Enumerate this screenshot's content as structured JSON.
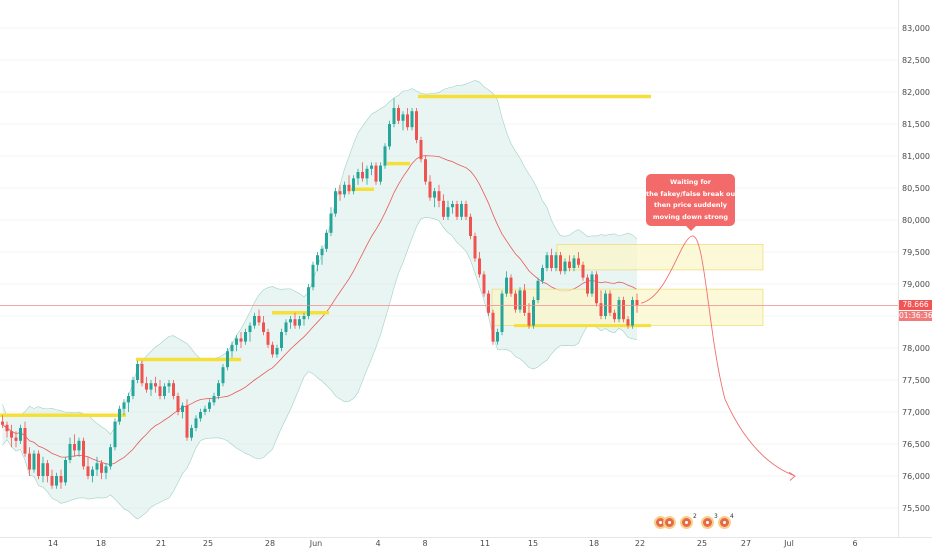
{
  "chart_data": {
    "type": "candlestick",
    "title": "",
    "xlabel": "",
    "ylabel": "",
    "x_ticks": [
      "14",
      "18",
      "21",
      "25",
      "28",
      "Jun",
      "4",
      "8",
      "11",
      "15",
      "18",
      "22",
      "25",
      "27",
      "Jul",
      "6"
    ],
    "y_ticks": [
      "75,500",
      "76,000",
      "76,500",
      "77,000",
      "77,500",
      "78,000",
      "78,500",
      "79,000",
      "79,500",
      "80,000",
      "80,500",
      "81,000",
      "81,500",
      "82,000",
      "82,500",
      "83,000"
    ],
    "ylim": [
      75.2,
      83.2
    ],
    "current_price": "78.666",
    "countdown": "01:36:36",
    "annotation": [
      "Waiting for",
      "the fakey/false break out,",
      "then price suddenly",
      "moving down strong"
    ],
    "series": [
      {
        "values": [
          [
            76.85,
            76.95,
            76.75,
            76.8
          ],
          [
            76.8,
            76.85,
            76.6,
            76.7
          ],
          [
            76.7,
            76.8,
            76.45,
            76.6
          ],
          [
            76.6,
            76.7,
            76.45,
            76.55
          ],
          [
            76.55,
            76.8,
            76.5,
            76.75
          ],
          [
            76.75,
            76.85,
            76.3,
            76.35
          ],
          [
            76.35,
            76.45,
            76.0,
            76.1
          ],
          [
            76.1,
            76.4,
            76.05,
            76.35
          ],
          [
            76.35,
            76.4,
            75.95,
            76.0
          ],
          [
            76.0,
            76.3,
            75.9,
            76.2
          ],
          [
            76.2,
            76.25,
            75.9,
            76.0
          ],
          [
            76.0,
            76.1,
            75.8,
            75.85
          ],
          [
            75.85,
            76.05,
            75.8,
            76.0
          ],
          [
            76.0,
            76.1,
            75.8,
            75.9
          ],
          [
            75.9,
            76.3,
            75.85,
            76.25
          ],
          [
            76.25,
            76.6,
            76.2,
            76.5
          ],
          [
            76.5,
            76.65,
            76.3,
            76.4
          ],
          [
            76.4,
            76.6,
            76.3,
            76.55
          ],
          [
            76.55,
            76.6,
            76.1,
            76.15
          ],
          [
            76.15,
            76.3,
            75.95,
            76.0
          ],
          [
            76.0,
            76.15,
            75.9,
            76.1
          ],
          [
            76.1,
            76.3,
            76.0,
            76.2
          ],
          [
            76.2,
            76.25,
            75.95,
            76.05
          ],
          [
            76.05,
            76.2,
            75.95,
            76.15
          ],
          [
            76.15,
            76.5,
            76.1,
            76.45
          ],
          [
            76.45,
            76.9,
            76.4,
            76.85
          ],
          [
            76.85,
            77.1,
            76.8,
            77.05
          ],
          [
            77.05,
            77.2,
            76.95,
            77.15
          ],
          [
            77.15,
            77.3,
            77.0,
            77.25
          ],
          [
            77.25,
            77.55,
            77.2,
            77.5
          ],
          [
            77.5,
            77.8,
            77.45,
            77.75
          ],
          [
            77.75,
            77.8,
            77.4,
            77.45
          ],
          [
            77.45,
            77.55,
            77.3,
            77.35
          ],
          [
            77.35,
            77.5,
            77.25,
            77.45
          ],
          [
            77.45,
            77.55,
            77.3,
            77.4
          ],
          [
            77.4,
            77.5,
            77.2,
            77.25
          ],
          [
            77.25,
            77.45,
            77.2,
            77.4
          ],
          [
            77.4,
            77.5,
            77.3,
            77.45
          ],
          [
            77.45,
            77.5,
            77.2,
            77.25
          ],
          [
            77.25,
            77.3,
            76.95,
            77.0
          ],
          [
            77.0,
            77.15,
            76.9,
            77.1
          ],
          [
            77.1,
            77.2,
            76.55,
            76.6
          ],
          [
            76.6,
            76.8,
            76.55,
            76.75
          ],
          [
            76.75,
            76.95,
            76.7,
            76.9
          ],
          [
            76.9,
            77.05,
            76.85,
            77.0
          ],
          [
            77.0,
            77.1,
            76.95,
            77.05
          ],
          [
            77.05,
            77.2,
            77.0,
            77.15
          ],
          [
            77.15,
            77.3,
            77.1,
            77.25
          ],
          [
            77.25,
            77.5,
            77.2,
            77.45
          ],
          [
            77.45,
            77.75,
            77.4,
            77.7
          ],
          [
            77.7,
            78.0,
            77.65,
            77.95
          ],
          [
            77.95,
            78.1,
            77.85,
            78.05
          ],
          [
            78.05,
            78.2,
            77.95,
            78.15
          ],
          [
            78.15,
            78.25,
            78.0,
            78.1
          ],
          [
            78.1,
            78.3,
            78.05,
            78.25
          ],
          [
            78.25,
            78.4,
            78.1,
            78.35
          ],
          [
            78.35,
            78.55,
            78.3,
            78.5
          ],
          [
            78.5,
            78.6,
            78.35,
            78.4
          ],
          [
            78.4,
            78.5,
            78.2,
            78.25
          ],
          [
            78.25,
            78.3,
            78.0,
            78.05
          ],
          [
            78.05,
            78.1,
            77.85,
            77.9
          ],
          [
            77.9,
            78.05,
            77.85,
            78.0
          ],
          [
            78.0,
            78.3,
            77.95,
            78.25
          ],
          [
            78.25,
            78.45,
            78.2,
            78.4
          ],
          [
            78.4,
            78.5,
            78.3,
            78.45
          ],
          [
            78.45,
            78.55,
            78.3,
            78.35
          ],
          [
            78.35,
            78.5,
            78.3,
            78.45
          ],
          [
            78.45,
            78.55,
            78.35,
            78.5
          ],
          [
            78.5,
            79.0,
            78.45,
            78.95
          ],
          [
            78.95,
            79.35,
            78.9,
            79.3
          ],
          [
            79.3,
            79.5,
            79.2,
            79.45
          ],
          [
            79.45,
            79.6,
            79.3,
            79.55
          ],
          [
            79.55,
            79.85,
            79.5,
            79.8
          ],
          [
            79.8,
            80.2,
            79.75,
            80.1
          ],
          [
            80.1,
            80.5,
            80.05,
            80.45
          ],
          [
            80.45,
            80.55,
            80.3,
            80.4
          ],
          [
            80.4,
            80.6,
            80.35,
            80.55
          ],
          [
            80.55,
            80.7,
            80.4,
            80.45
          ],
          [
            80.45,
            80.7,
            80.4,
            80.65
          ],
          [
            80.65,
            80.8,
            80.55,
            80.75
          ],
          [
            80.75,
            80.9,
            80.6,
            80.65
          ],
          [
            80.65,
            80.85,
            80.55,
            80.8
          ],
          [
            80.8,
            80.9,
            80.7,
            80.85
          ],
          [
            80.85,
            80.9,
            80.55,
            80.6
          ],
          [
            80.6,
            80.9,
            80.55,
            80.85
          ],
          [
            80.85,
            81.2,
            80.8,
            81.15
          ],
          [
            81.15,
            81.55,
            81.1,
            81.5
          ],
          [
            81.5,
            81.9,
            81.45,
            81.75
          ],
          [
            81.75,
            81.8,
            81.5,
            81.55
          ],
          [
            81.55,
            81.7,
            81.4,
            81.65
          ],
          [
            81.65,
            81.75,
            81.4,
            81.45
          ],
          [
            81.45,
            81.75,
            81.4,
            81.7
          ],
          [
            81.7,
            81.75,
            81.2,
            81.25
          ],
          [
            81.25,
            81.3,
            80.9,
            80.95
          ],
          [
            80.95,
            81.0,
            80.55,
            80.6
          ],
          [
            80.6,
            80.7,
            80.3,
            80.35
          ],
          [
            80.35,
            80.5,
            80.2,
            80.45
          ],
          [
            80.45,
            80.55,
            80.2,
            80.3
          ],
          [
            80.3,
            80.4,
            80.0,
            80.05
          ],
          [
            80.05,
            80.3,
            80.0,
            80.2
          ],
          [
            80.2,
            80.3,
            80.1,
            80.25
          ],
          [
            80.25,
            80.3,
            80.0,
            80.05
          ],
          [
            80.05,
            80.3,
            80.0,
            80.25
          ],
          [
            80.25,
            80.3,
            80.0,
            80.05
          ],
          [
            80.05,
            80.1,
            79.7,
            79.75
          ],
          [
            79.75,
            79.8,
            79.35,
            79.4
          ],
          [
            79.4,
            79.5,
            79.1,
            79.15
          ],
          [
            79.15,
            79.2,
            78.8,
            78.85
          ],
          [
            78.85,
            78.9,
            78.5,
            78.55
          ],
          [
            78.55,
            78.6,
            78.05,
            78.1
          ],
          [
            78.1,
            78.3,
            78.05,
            78.25
          ],
          [
            78.25,
            78.9,
            78.2,
            78.85
          ],
          [
            78.85,
            79.2,
            78.8,
            79.1
          ],
          [
            79.1,
            79.15,
            78.8,
            78.85
          ],
          [
            78.85,
            78.9,
            78.55,
            78.6
          ],
          [
            78.6,
            78.95,
            78.55,
            78.9
          ],
          [
            78.9,
            79.0,
            78.5,
            78.55
          ],
          [
            78.55,
            78.7,
            78.3,
            78.35
          ],
          [
            78.35,
            78.8,
            78.3,
            78.75
          ],
          [
            78.75,
            79.1,
            78.7,
            79.05
          ],
          [
            79.05,
            79.3,
            79.0,
            79.25
          ],
          [
            79.25,
            79.5,
            79.2,
            79.45
          ],
          [
            79.45,
            79.55,
            79.2,
            79.25
          ],
          [
            79.25,
            79.5,
            79.2,
            79.45
          ],
          [
            79.45,
            79.5,
            79.15,
            79.2
          ],
          [
            79.2,
            79.4,
            79.15,
            79.35
          ],
          [
            79.35,
            79.45,
            79.2,
            79.25
          ],
          [
            79.25,
            79.45,
            79.2,
            79.4
          ],
          [
            79.4,
            79.5,
            79.25,
            79.3
          ],
          [
            79.3,
            79.35,
            79.05,
            79.1
          ],
          [
            79.1,
            79.15,
            78.8,
            78.85
          ],
          [
            78.85,
            79.2,
            78.8,
            79.15
          ],
          [
            79.15,
            79.2,
            78.65,
            78.7
          ],
          [
            78.7,
            78.9,
            78.45,
            78.5
          ],
          [
            78.5,
            78.9,
            78.45,
            78.85
          ],
          [
            78.85,
            78.9,
            78.5,
            78.55
          ],
          [
            78.55,
            78.6,
            78.4,
            78.45
          ],
          [
            78.45,
            78.8,
            78.4,
            78.75
          ],
          [
            78.75,
            78.8,
            78.4,
            78.45
          ],
          [
            78.45,
            78.5,
            78.3,
            78.35
          ],
          [
            78.35,
            78.8,
            78.3,
            78.75
          ],
          [
            78.75,
            78.85,
            78.55,
            78.67
          ]
        ]
      }
    ],
    "levels": [
      76.95,
      77.82,
      78.55,
      80.48,
      80.88,
      81.93
    ],
    "zones": [
      {
        "type": "upper",
        "from": 79.22,
        "to": 79.62
      },
      {
        "type": "lower",
        "from": 78.35,
        "to": 78.92
      }
    ],
    "colors": {
      "up": "#26a69a",
      "down": "#ef5350",
      "level": "#f5e03a",
      "band": "#d7ede9",
      "basis": "#e85a5a",
      "zone": "#fbf6c8",
      "callout": "#f36a6a"
    },
    "event_counts": [
      "2",
      "3",
      "4"
    ]
  }
}
